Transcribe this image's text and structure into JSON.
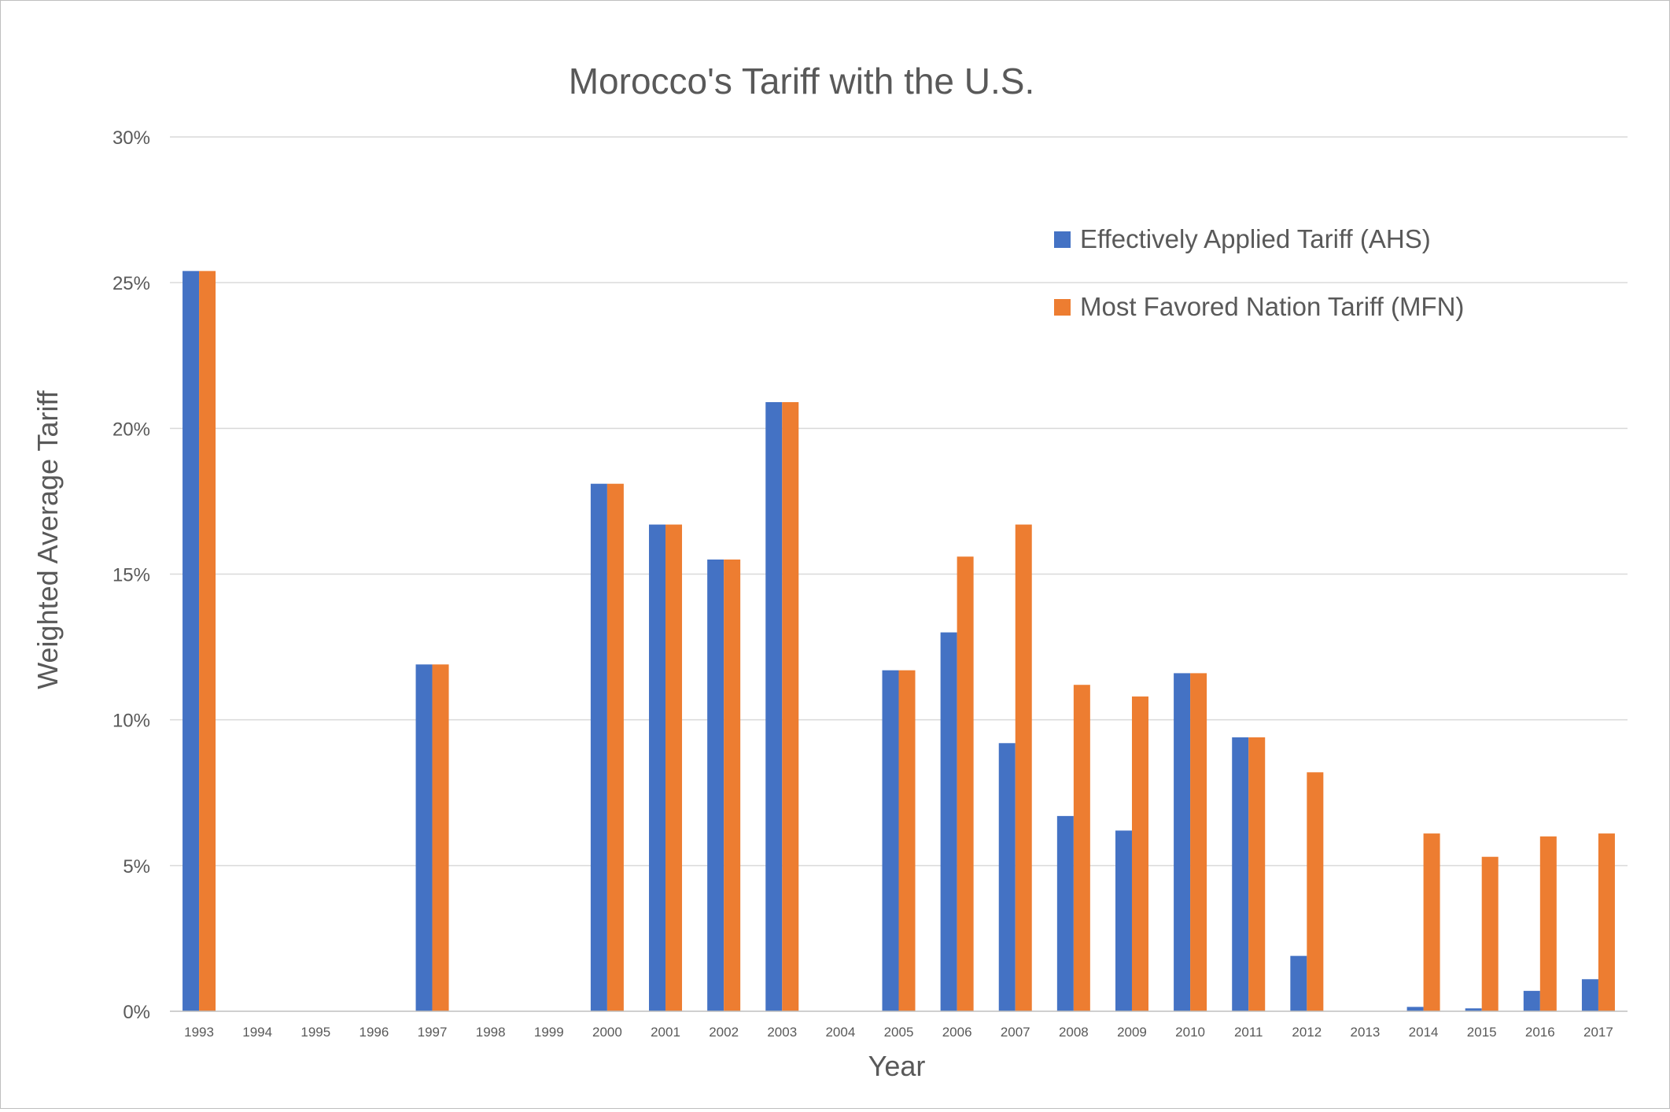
{
  "chart_data": {
    "type": "bar",
    "title": "Morocco's Tariff with the U.S.",
    "xlabel": "Year",
    "ylabel": "Weighted Average Tariff",
    "ylim": [
      0,
      30
    ],
    "yticks": [
      "0%",
      "5%",
      "10%",
      "15%",
      "20%",
      "25%",
      "30%"
    ],
    "grid": true,
    "legend_position": "top-right",
    "categories": [
      "1993",
      "1994",
      "1995",
      "1996",
      "1997",
      "1998",
      "1999",
      "2000",
      "2001",
      "2002",
      "2003",
      "2004",
      "2005",
      "2006",
      "2007",
      "2008",
      "2009",
      "2010",
      "2011",
      "2012",
      "2013",
      "2014",
      "2015",
      "2016",
      "2017"
    ],
    "series": [
      {
        "name": "Effectively Applied Tariff (AHS)",
        "color": "#4472c4",
        "values": [
          25.4,
          null,
          null,
          null,
          11.9,
          null,
          null,
          18.1,
          16.7,
          15.5,
          20.9,
          null,
          11.7,
          13.0,
          9.2,
          6.7,
          6.2,
          11.6,
          9.4,
          1.9,
          null,
          0.15,
          0.1,
          0.7,
          1.1
        ]
      },
      {
        "name": "Most Favored Nation Tariff (MFN)",
        "color": "#ed7d31",
        "values": [
          25.4,
          null,
          null,
          null,
          11.9,
          null,
          null,
          18.1,
          16.7,
          15.5,
          20.9,
          null,
          11.7,
          15.6,
          16.7,
          11.2,
          10.8,
          11.6,
          9.4,
          8.2,
          null,
          6.1,
          5.3,
          6.0,
          6.1
        ]
      }
    ]
  },
  "colors": {
    "text": "#595959",
    "gridline": "#d9d9d9",
    "axis": "#bfbfbf"
  }
}
